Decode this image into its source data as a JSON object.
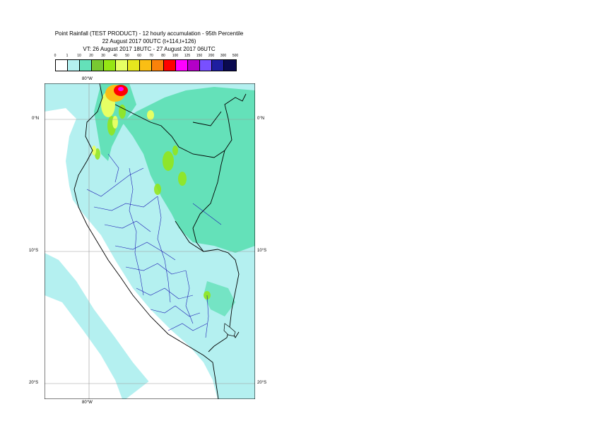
{
  "header": {
    "title_line1": "Point Rainfall (TEST PRODUCT) - 12 hourly accumulation - 95th Percentile",
    "title_line2": "22 August 2017 00UTC (t+114,t+126)",
    "title_line3": "VT: 26 August 2017 18UTC - 27 August 2017 06UTC"
  },
  "legend": {
    "labels": [
      "0",
      "1",
      "10",
      "20",
      "30",
      "40",
      "50",
      "60",
      "70",
      "80",
      "100",
      "125",
      "150",
      "200",
      "300",
      "500"
    ],
    "colors": [
      "#ffffff",
      "#b4f0f0",
      "#64e1b9",
      "#78c832",
      "#96e614",
      "#e6ff64",
      "#e6e61e",
      "#fabe14",
      "#fa820a",
      "#ff0000",
      "#ff00ff",
      "#b400c8",
      "#7850ff",
      "#1e1ea0",
      "#0a0a50"
    ]
  },
  "map": {
    "labels": {
      "lon_top": "80°W",
      "lon_bottom": "80°W",
      "lat_0_left": "0°N",
      "lat_0_right": "0°N",
      "lat_10_left": "10°S",
      "lat_10_right": "10°S",
      "lat_20_left": "20°S",
      "lat_20_right": "20°S"
    }
  }
}
